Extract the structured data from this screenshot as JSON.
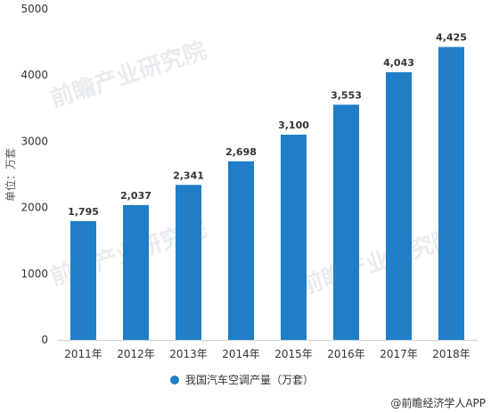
{
  "chart_data": {
    "type": "bar",
    "categories": [
      "2011年",
      "2012年",
      "2013年",
      "2014年",
      "2015年",
      "2016年",
      "2017年",
      "2018年"
    ],
    "values": [
      1795,
      2037,
      2341,
      2698,
      3100,
      3553,
      4043,
      4425
    ],
    "data_labels": [
      "1,795",
      "2,037",
      "2,341",
      "2,698",
      "3,100",
      "3,553",
      "4,043",
      "4,425"
    ],
    "series": [
      {
        "name": "我国汽车空调产量（万套）",
        "values": [
          1795,
          2037,
          2341,
          2698,
          3100,
          3553,
          4043,
          4425
        ]
      }
    ],
    "title": "",
    "xlabel": "",
    "ylabel": "单位：万套",
    "ylim": [
      0,
      5000
    ],
    "yticks": [
      0,
      1000,
      2000,
      3000,
      4000,
      5000
    ],
    "grid": false,
    "legend_placement": "bottom-center",
    "bar_color": "#1f7ec7"
  },
  "watermark_text": "前瞻产业研究院",
  "credit": "@前瞻经济学人APP"
}
